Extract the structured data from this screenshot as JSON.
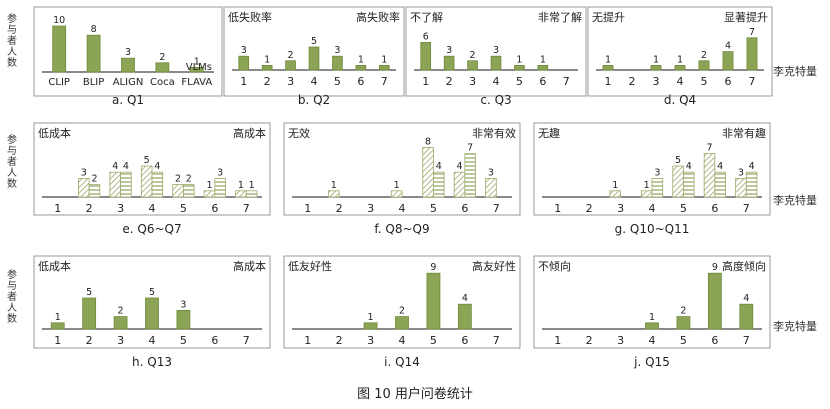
{
  "figure": {
    "caption": "图 10    用户问卷统计",
    "y_label": "参与者人数",
    "x_label": "李克特量",
    "colors": {
      "solid": "#8ca455",
      "solid_stroke": "#6f8a3a",
      "hatch": "#9aaa6a"
    }
  },
  "chart_data": [
    {
      "type": "bar",
      "caption": "a. Q1",
      "left_label": "",
      "right_label": "",
      "series_label": "VLMs",
      "categories": [
        "CLIP",
        "BLIP",
        "ALIGN",
        "Coca",
        "FLAVA"
      ],
      "series": [
        {
          "style": "solid",
          "values": [
            10,
            8,
            3,
            2,
            1
          ]
        }
      ],
      "ylim": [
        0,
        10
      ]
    },
    {
      "type": "bar",
      "caption": "b. Q2",
      "left_label": "低失败率",
      "right_label": "高失败率",
      "categories": [
        "1",
        "2",
        "3",
        "4",
        "5",
        "6",
        "7"
      ],
      "series": [
        {
          "style": "solid",
          "values": [
            3,
            1,
            2,
            5,
            3,
            1,
            1
          ]
        }
      ],
      "ylim": [
        0,
        10
      ]
    },
    {
      "type": "bar",
      "caption": "c. Q3",
      "left_label": "不了解",
      "right_label": "非常了解",
      "categories": [
        "1",
        "2",
        "3",
        "4",
        "5",
        "6",
        "7"
      ],
      "series": [
        {
          "style": "solid",
          "values": [
            6,
            3,
            2,
            3,
            1,
            1,
            0
          ]
        }
      ],
      "ylim": [
        0,
        10
      ]
    },
    {
      "type": "bar",
      "caption": "d. Q4",
      "left_label": "无提升",
      "right_label": "显著提升",
      "categories": [
        "1",
        "2",
        "3",
        "4",
        "5",
        "6",
        "7"
      ],
      "series": [
        {
          "style": "solid",
          "values": [
            1,
            0,
            1,
            1,
            2,
            4,
            7
          ]
        }
      ],
      "ylim": [
        0,
        10
      ]
    },
    {
      "type": "bar",
      "caption": "e. Q6~Q7",
      "left_label": "低成本",
      "right_label": "高成本",
      "categories": [
        "1",
        "2",
        "3",
        "4",
        "5",
        "6",
        "7"
      ],
      "series": [
        {
          "style": "hatch",
          "values": [
            0,
            3,
            4,
            5,
            2,
            1,
            1
          ]
        },
        {
          "style": "hatch2",
          "values": [
            0,
            2,
            4,
            4,
            2,
            3,
            1
          ]
        }
      ],
      "ylim": [
        0,
        10
      ]
    },
    {
      "type": "bar",
      "caption": "f. Q8~Q9",
      "left_label": "无效",
      "right_label": "非常有效",
      "categories": [
        "1",
        "2",
        "3",
        "4",
        "5",
        "6",
        "7"
      ],
      "series": [
        {
          "style": "hatch",
          "values": [
            0,
            1,
            0,
            1,
            8,
            4,
            3
          ]
        },
        {
          "style": "hatch2",
          "values": [
            0,
            0,
            0,
            0,
            4,
            7,
            0
          ]
        }
      ],
      "ylim": [
        0,
        10
      ]
    },
    {
      "type": "bar",
      "caption": "g. Q10~Q11",
      "left_label": "无趣",
      "right_label": "非常有趣",
      "categories": [
        "1",
        "2",
        "3",
        "4",
        "5",
        "6",
        "7"
      ],
      "series": [
        {
          "style": "hatch",
          "values": [
            0,
            0,
            1,
            1,
            5,
            7,
            3
          ]
        },
        {
          "style": "hatch2",
          "values": [
            0,
            0,
            0,
            3,
            4,
            4,
            4
          ]
        }
      ],
      "ylim": [
        0,
        10
      ]
    },
    {
      "type": "bar",
      "caption": "h. Q13",
      "left_label": "低成本",
      "right_label": "高成本",
      "categories": [
        "1",
        "2",
        "3",
        "4",
        "5",
        "6",
        "7"
      ],
      "series": [
        {
          "style": "solid",
          "values": [
            1,
            5,
            2,
            5,
            3,
            0,
            0
          ]
        }
      ],
      "ylim": [
        0,
        10
      ]
    },
    {
      "type": "bar",
      "caption": "i. Q14",
      "left_label": "低友好性",
      "right_label": "高友好性",
      "categories": [
        "1",
        "2",
        "3",
        "4",
        "5",
        "6",
        "7"
      ],
      "series": [
        {
          "style": "solid",
          "values": [
            0,
            0,
            1,
            2,
            9,
            4,
            0
          ]
        }
      ],
      "ylim": [
        0,
        10
      ]
    },
    {
      "type": "bar",
      "caption": "j. Q15",
      "left_label": "不倾向",
      "right_label": "高度倾向",
      "categories": [
        "1",
        "2",
        "3",
        "4",
        "5",
        "6",
        "7"
      ],
      "series": [
        {
          "style": "solid",
          "values": [
            0,
            0,
            0,
            1,
            2,
            9,
            4
          ]
        }
      ],
      "ylim": [
        0,
        10
      ]
    }
  ]
}
